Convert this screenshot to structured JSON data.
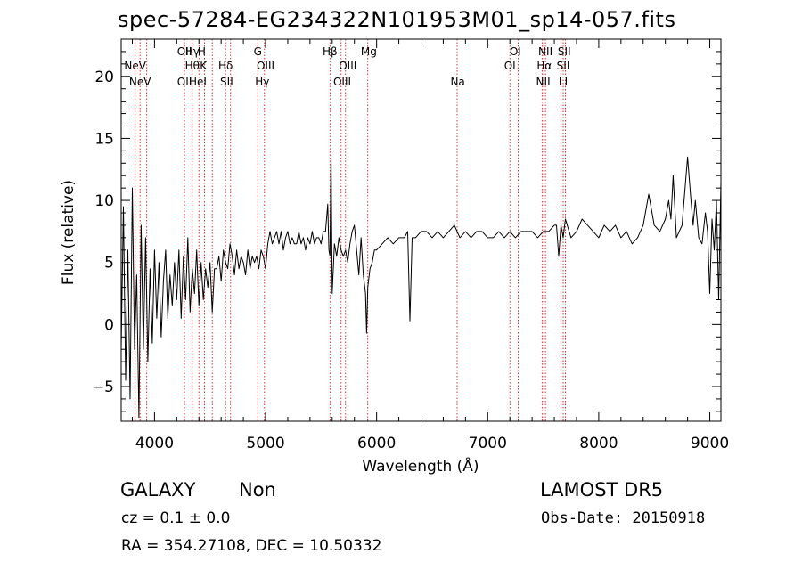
{
  "info": {
    "object_class": "GALAXY",
    "subclass": "Non",
    "survey": "LAMOST  DR5",
    "cz": "cz = 0.1 ± 0.0",
    "obs_date": "Obs-Date: 20150918",
    "radec": "RA = 354.27108, DEC =  10.50332"
  },
  "colors": {
    "line_marker": "#cc2222",
    "spectrum": "#000000"
  },
  "chart_data": {
    "type": "line",
    "title": "spec-57284-EG234322N101953M01_sp14-057.fits",
    "xlabel": "Wavelength (Å)",
    "ylabel": "Flux (relative)",
    "xlim": [
      3700,
      9100
    ],
    "ylim": [
      -7.8,
      23
    ],
    "xticks": [
      4000,
      5000,
      6000,
      7000,
      8000,
      9000
    ],
    "yticks": [
      -5,
      0,
      5,
      10,
      15,
      20
    ],
    "spectral_lines": [
      {
        "label": "NeV",
        "wavelength": 3826,
        "row": 1
      },
      {
        "label": "NeV",
        "wavelength": 3870,
        "row": 2
      },
      {
        "label": "OII",
        "wavelength": 4270,
        "row": 0
      },
      {
        "label": "OII",
        "wavelength": 4270,
        "row": 2
      },
      {
        "label": "Hγ",
        "wavelength": 4340,
        "row": 0
      },
      {
        "label": "Hθ",
        "wavelength": 4340,
        "row": 1
      },
      {
        "label": "H",
        "wavelength": 4425,
        "row": 0
      },
      {
        "label": "K",
        "wavelength": 4440,
        "row": 1
      },
      {
        "label": "HeI",
        "wavelength": 4390,
        "row": 2
      },
      {
        "label": "Hδ",
        "wavelength": 4640,
        "row": 1
      },
      {
        "label": "SII",
        "wavelength": 4650,
        "row": 2
      },
      {
        "label": "G",
        "wavelength": 4930,
        "row": 0
      },
      {
        "label": "OIII",
        "wavelength": 5000,
        "row": 1
      },
      {
        "label": "Hγ",
        "wavelength": 4970,
        "row": 2
      },
      {
        "label": "Hβ",
        "wavelength": 5580,
        "row": 0
      },
      {
        "label": "OIII",
        "wavelength": 5740,
        "row": 1
      },
      {
        "label": "OIII",
        "wavelength": 5690,
        "row": 2
      },
      {
        "label": "Mg",
        "wavelength": 5930,
        "row": 0
      },
      {
        "label": "Na",
        "wavelength": 6730,
        "row": 2
      },
      {
        "label": "OI",
        "wavelength": 7250,
        "row": 0
      },
      {
        "label": "OI",
        "wavelength": 7200,
        "row": 1
      },
      {
        "label": "NII",
        "wavelength": 7520,
        "row": 0
      },
      {
        "label": "Hα",
        "wavelength": 7510,
        "row": 1
      },
      {
        "label": "NII",
        "wavelength": 7500,
        "row": 2
      },
      {
        "label": "SII",
        "wavelength": 7690,
        "row": 0
      },
      {
        "label": "SII",
        "wavelength": 7680,
        "row": 1
      },
      {
        "label": "LI",
        "wavelength": 7680,
        "row": 2
      }
    ],
    "marker_wavelengths": [
      3826,
      3870,
      3930,
      4270,
      4340,
      4400,
      4450,
      4520,
      4640,
      4685,
      4930,
      4990,
      5580,
      5680,
      5720,
      5920,
      6725,
      7200,
      7275,
      7490,
      7505,
      7520,
      7660,
      7680,
      7700
    ],
    "series": [
      {
        "x": [
          3700,
          3720,
          3740,
          3760,
          3780,
          3800,
          3820,
          3840,
          3860,
          3880,
          3900,
          3920,
          3940,
          3960,
          3980,
          4000,
          4020,
          4040,
          4060,
          4080,
          4100,
          4120,
          4140,
          4160,
          4180,
          4200,
          4220,
          4240,
          4260,
          4280,
          4300,
          4320,
          4340,
          4360,
          4380,
          4400,
          4420,
          4440,
          4460,
          4480,
          4500,
          4520,
          4540,
          4560,
          4580,
          4600,
          4620,
          4640,
          4660,
          4680,
          4700,
          4720,
          4740,
          4760,
          4780,
          4800,
          4820,
          4840,
          4860,
          4880,
          4900,
          4920,
          4940,
          4960,
          4980,
          5000,
          5020,
          5040,
          5060,
          5080,
          5100,
          5120,
          5140,
          5160,
          5180,
          5200,
          5220,
          5240,
          5260,
          5280,
          5300,
          5320,
          5340,
          5360,
          5380,
          5400,
          5420,
          5440,
          5460,
          5480,
          5500,
          5520,
          5540,
          5560,
          5570,
          5580,
          5590,
          5600,
          5620,
          5640,
          5660,
          5680,
          5700,
          5720,
          5740,
          5760,
          5780,
          5800,
          5820,
          5840,
          5860,
          5880,
          5900,
          5910,
          5920,
          5940,
          5960,
          5980,
          6000,
          6050,
          6100,
          6150,
          6200,
          6250,
          6280,
          6300,
          6320,
          6350,
          6400,
          6450,
          6500,
          6550,
          6600,
          6650,
          6700,
          6750,
          6800,
          6850,
          6900,
          6950,
          7000,
          7050,
          7100,
          7150,
          7200,
          7250,
          7300,
          7350,
          7400,
          7450,
          7500,
          7550,
          7600,
          7620,
          7640,
          7660,
          7680,
          7700,
          7750,
          7800,
          7850,
          7900,
          7950,
          8000,
          8050,
          8100,
          8150,
          8200,
          8250,
          8300,
          8350,
          8400,
          8450,
          8500,
          8550,
          8600,
          8630,
          8650,
          8670,
          8700,
          8750,
          8800,
          8830,
          8850,
          8870,
          8900,
          8930,
          8960,
          8980,
          9000,
          9020,
          9040,
          9060,
          9080,
          9100
        ],
        "y": [
          -2,
          9.5,
          -4.5,
          6,
          -6,
          11,
          -2,
          4,
          -7.5,
          8,
          -2,
          7,
          -3,
          4.5,
          -1.5,
          6,
          0.5,
          5,
          -1,
          3.5,
          6,
          0.5,
          4,
          1.5,
          5,
          2,
          6,
          0.5,
          5.5,
          2,
          7,
          1,
          4.5,
          2.5,
          6,
          1.5,
          5,
          2,
          4.5,
          3,
          5,
          1,
          4.5,
          4.5,
          5.5,
          3.5,
          6,
          5,
          4.5,
          6.5,
          5.5,
          4,
          6,
          4.5,
          5.5,
          5,
          4,
          6,
          4.5,
          5.5,
          5,
          5.5,
          4.5,
          6,
          5.5,
          4.5,
          6.5,
          7.5,
          6.5,
          7,
          7.5,
          6.5,
          7.5,
          6,
          7,
          7.5,
          6.5,
          7,
          6.5,
          6.5,
          7.5,
          6.5,
          7,
          6,
          7,
          6.5,
          7.5,
          6.5,
          7,
          7,
          6.5,
          7.5,
          7.5,
          9.7,
          6,
          5.5,
          14,
          2.5,
          6.5,
          5.5,
          7,
          6,
          5.5,
          6,
          5,
          6.5,
          7.5,
          8,
          6,
          4,
          7,
          4,
          2.5,
          -0.7,
          3,
          4.5,
          5,
          6,
          6,
          6.5,
          7,
          6.5,
          7,
          7,
          7.5,
          0.3,
          7,
          7,
          7.5,
          7.5,
          7,
          7.5,
          7,
          7.5,
          8,
          7,
          7.5,
          7,
          7.5,
          7.5,
          7,
          7,
          7.5,
          7,
          7.5,
          7,
          7.5,
          7.5,
          7.5,
          7,
          7.5,
          7.5,
          8,
          8,
          5.5,
          8,
          7,
          8.5,
          7,
          7.5,
          8.5,
          8,
          7.5,
          7,
          8,
          7.5,
          8,
          7,
          7.5,
          6.5,
          7,
          8,
          10.5,
          8,
          7.5,
          8.5,
          10,
          8.5,
          12,
          7,
          8,
          13.5,
          10,
          8,
          10,
          7,
          6.5,
          9,
          7.5,
          2.5,
          8.5,
          6,
          10,
          2,
          11.5
        ]
      }
    ]
  }
}
